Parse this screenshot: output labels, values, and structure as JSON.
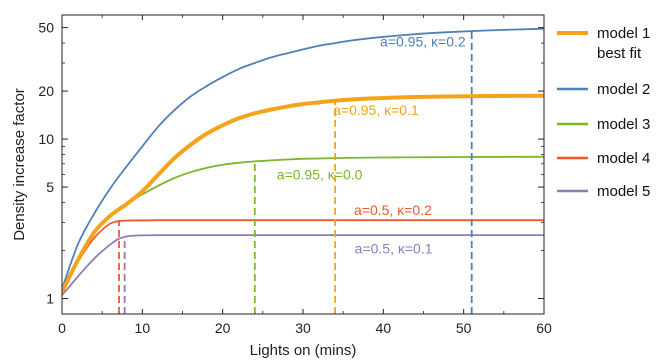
{
  "chart_data": {
    "type": "line",
    "xlabel": "Lights on (mins)",
    "ylabel": "Density increase factor",
    "xlim": [
      0,
      60
    ],
    "ylim": [
      0.8,
      60
    ],
    "yscale": "log",
    "grid": false,
    "legend_position": "right",
    "x_ticks": [
      0,
      10,
      20,
      30,
      40,
      50,
      60
    ],
    "y_ticks": [
      1,
      5,
      10,
      20,
      50
    ],
    "series": [
      {
        "name": "model 1",
        "name_line2": "best fit",
        "color": "#f5a31a",
        "line_style": "thick",
        "x": [
          0,
          2,
          4,
          6,
          8,
          10,
          12,
          14,
          16,
          18,
          20,
          22,
          24,
          26,
          28,
          30,
          32,
          34,
          36,
          38,
          40,
          44,
          48,
          52,
          56,
          60
        ],
        "y": [
          1.1,
          1.75,
          2.6,
          3.3,
          3.9,
          4.7,
          6.0,
          7.6,
          9.2,
          10.8,
          12.2,
          13.5,
          14.5,
          15.3,
          16.0,
          16.6,
          17.0,
          17.4,
          17.7,
          17.95,
          18.1,
          18.35,
          18.5,
          18.6,
          18.65,
          18.7
        ],
        "annotation": "a=0.95, κ=0.1",
        "marker_x": 34
      },
      {
        "name": "model 2",
        "color": "#4e81b8",
        "line_style": "thin",
        "x": [
          0,
          2,
          4,
          6,
          8,
          10,
          12,
          14,
          16,
          18,
          20,
          22,
          24,
          26,
          28,
          30,
          32,
          34,
          36,
          38,
          40,
          44,
          48,
          52,
          56,
          60
        ],
        "y": [
          1.15,
          2.2,
          3.4,
          4.9,
          6.7,
          9.0,
          12.0,
          15.2,
          18.5,
          21.5,
          24.5,
          27.5,
          30.0,
          32.5,
          34.5,
          36.5,
          38.5,
          40.0,
          41.5,
          42.7,
          43.7,
          45.5,
          46.8,
          47.8,
          48.6,
          49.2
        ],
        "annotation": "a=0.95, κ=0.2",
        "marker_x": 51
      },
      {
        "name": "model 3",
        "color": "#7ab829",
        "line_style": "thin",
        "x": [
          0,
          2,
          4,
          6,
          8,
          10,
          12,
          14,
          16,
          18,
          20,
          22,
          24,
          26,
          28,
          30,
          34,
          38,
          42,
          46,
          50,
          55,
          60
        ],
        "y": [
          1.1,
          1.75,
          2.6,
          3.35,
          3.95,
          4.5,
          5.1,
          5.7,
          6.2,
          6.6,
          6.9,
          7.1,
          7.25,
          7.35,
          7.45,
          7.52,
          7.6,
          7.65,
          7.68,
          7.7,
          7.72,
          7.73,
          7.75
        ],
        "annotation": "a=0.95, κ=0.0",
        "marker_x": 24
      },
      {
        "name": "model 4",
        "color": "#ee5a2c",
        "line_style": "thin",
        "x": [
          0,
          1,
          2,
          3,
          4,
          5,
          6,
          7,
          8,
          9,
          10,
          12,
          15,
          20,
          30,
          40,
          50,
          60
        ],
        "y": [
          1.1,
          1.38,
          1.7,
          2.05,
          2.4,
          2.7,
          2.95,
          3.06,
          3.08,
          3.09,
          3.09,
          3.1,
          3.1,
          3.1,
          3.1,
          3.1,
          3.1,
          3.1
        ],
        "annotation": "a=0.5, κ=0.2",
        "marker_x": 7.1
      },
      {
        "name": "model 5",
        "color": "#8f7bbb",
        "line_style": "thin",
        "x": [
          0,
          1,
          2,
          3,
          4,
          5,
          6,
          7,
          8,
          9,
          10,
          12,
          15,
          20,
          30,
          40,
          50,
          60
        ],
        "y": [
          1.05,
          1.2,
          1.38,
          1.57,
          1.78,
          1.98,
          2.18,
          2.36,
          2.45,
          2.48,
          2.49,
          2.5,
          2.5,
          2.5,
          2.5,
          2.5,
          2.5,
          2.5
        ],
        "annotation": "a=0.5, κ=0.1",
        "marker_x": 7.8
      }
    ]
  }
}
